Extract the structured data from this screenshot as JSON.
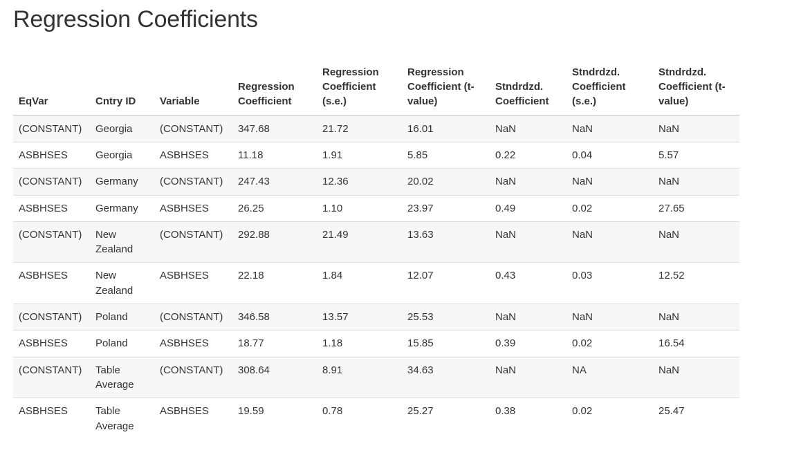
{
  "title": "Regression Coefficients",
  "colors": {
    "text": "#333333",
    "stripe": "#f7f7f7",
    "border": "#dddddd",
    "background": "#ffffff"
  },
  "table": {
    "columns": [
      "EqVar",
      "Cntry ID",
      "Variable",
      "Regression Coefficient",
      "Regression Coefficient (s.e.)",
      "Regression Coefficient (t-value)",
      "Stndrdzd. Coefficient",
      "Stndrdzd. Coefficient (s.e.)",
      "Stndrdzd. Coefficient (t-value)"
    ],
    "rows": [
      [
        "(CONSTANT)",
        "Georgia",
        "(CONSTANT)",
        "347.68",
        "21.72",
        "16.01",
        "NaN",
        "NaN",
        "NaN"
      ],
      [
        "ASBHSES",
        "Georgia",
        "ASBHSES",
        "11.18",
        "1.91",
        "5.85",
        "0.22",
        "0.04",
        "5.57"
      ],
      [
        "(CONSTANT)",
        "Germany",
        "(CONSTANT)",
        "247.43",
        "12.36",
        "20.02",
        "NaN",
        "NaN",
        "NaN"
      ],
      [
        "ASBHSES",
        "Germany",
        "ASBHSES",
        "26.25",
        "1.10",
        "23.97",
        "0.49",
        "0.02",
        "27.65"
      ],
      [
        "(CONSTANT)",
        "New Zealand",
        "(CONSTANT)",
        "292.88",
        "21.49",
        "13.63",
        "NaN",
        "NaN",
        "NaN"
      ],
      [
        "ASBHSES",
        "New Zealand",
        "ASBHSES",
        "22.18",
        "1.84",
        "12.07",
        "0.43",
        "0.03",
        "12.52"
      ],
      [
        "(CONSTANT)",
        "Poland",
        "(CONSTANT)",
        "346.58",
        "13.57",
        "25.53",
        "NaN",
        "NaN",
        "NaN"
      ],
      [
        "ASBHSES",
        "Poland",
        "ASBHSES",
        "18.77",
        "1.18",
        "15.85",
        "0.39",
        "0.02",
        "16.54"
      ],
      [
        "(CONSTANT)",
        "Table Average",
        "(CONSTANT)",
        "308.64",
        "8.91",
        "34.63",
        "NaN",
        "NA",
        "NaN"
      ],
      [
        "ASBHSES",
        "Table Average",
        "ASBHSES",
        "19.59",
        "0.78",
        "25.27",
        "0.38",
        "0.02",
        "25.47"
      ]
    ]
  }
}
